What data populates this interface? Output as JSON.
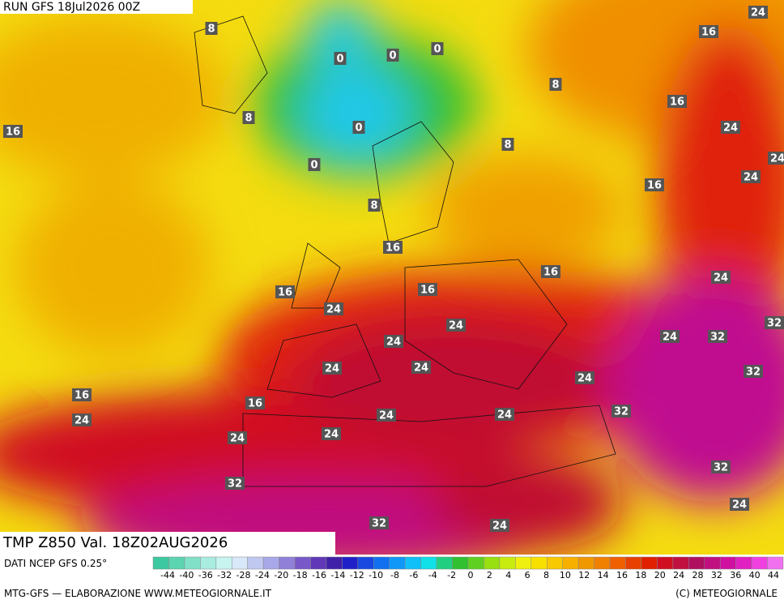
{
  "header": {
    "run": "RUN GFS 18Jul2026 00Z"
  },
  "map": {
    "contour_labels": [
      8,
      0,
      0,
      0,
      0,
      0,
      8,
      8,
      8,
      8,
      16,
      16,
      24,
      16,
      24,
      24,
      24,
      16,
      16,
      16,
      16,
      16,
      24,
      24,
      32,
      24,
      24,
      24,
      32,
      24,
      24,
      32,
      24,
      16,
      16,
      24,
      24,
      24,
      32,
      24,
      24,
      32,
      32,
      24,
      32,
      24
    ]
  },
  "footer": {
    "title": "TMP Z850 Val. 18Z02AUG2026",
    "source": "DATI NCEP GFS 0.25°",
    "credit": "MTG-GFS — ELABORAZIONE WWW.METEOGIORNALE.IT",
    "copyright": "(C) METEOGIORNALE"
  },
  "colorbar": {
    "labels": [
      -44,
      -40,
      -36,
      -32,
      -28,
      -24,
      -20,
      -18,
      -16,
      -14,
      -12,
      -10,
      -8,
      -6,
      -4,
      -2,
      0,
      2,
      4,
      6,
      8,
      10,
      12,
      14,
      16,
      18,
      20,
      24,
      28,
      32,
      36,
      40,
      44
    ],
    "colors": [
      "#3cc8a0",
      "#5cd4b0",
      "#80e0c8",
      "#a8ece0",
      "#c8f4f0",
      "#d8e8f8",
      "#c0c8f0",
      "#a8a8e8",
      "#9080d8",
      "#7858c8",
      "#6038b8",
      "#4020a8",
      "#2020c8",
      "#1848e0",
      "#1070f0",
      "#1098f8",
      "#10c0f8",
      "#10e0e8",
      "#20d080",
      "#30c030",
      "#60d020",
      "#98e010",
      "#c8ec10",
      "#f0f010",
      "#f8e000",
      "#f8c800",
      "#f8b000",
      "#f09800",
      "#f08000",
      "#f06000",
      "#e84000",
      "#e02000",
      "#d01020",
      "#c01040",
      "#b01060",
      "#c01080",
      "#d010a0",
      "#e020c0",
      "#f040e0",
      "#f070f0"
    ]
  }
}
